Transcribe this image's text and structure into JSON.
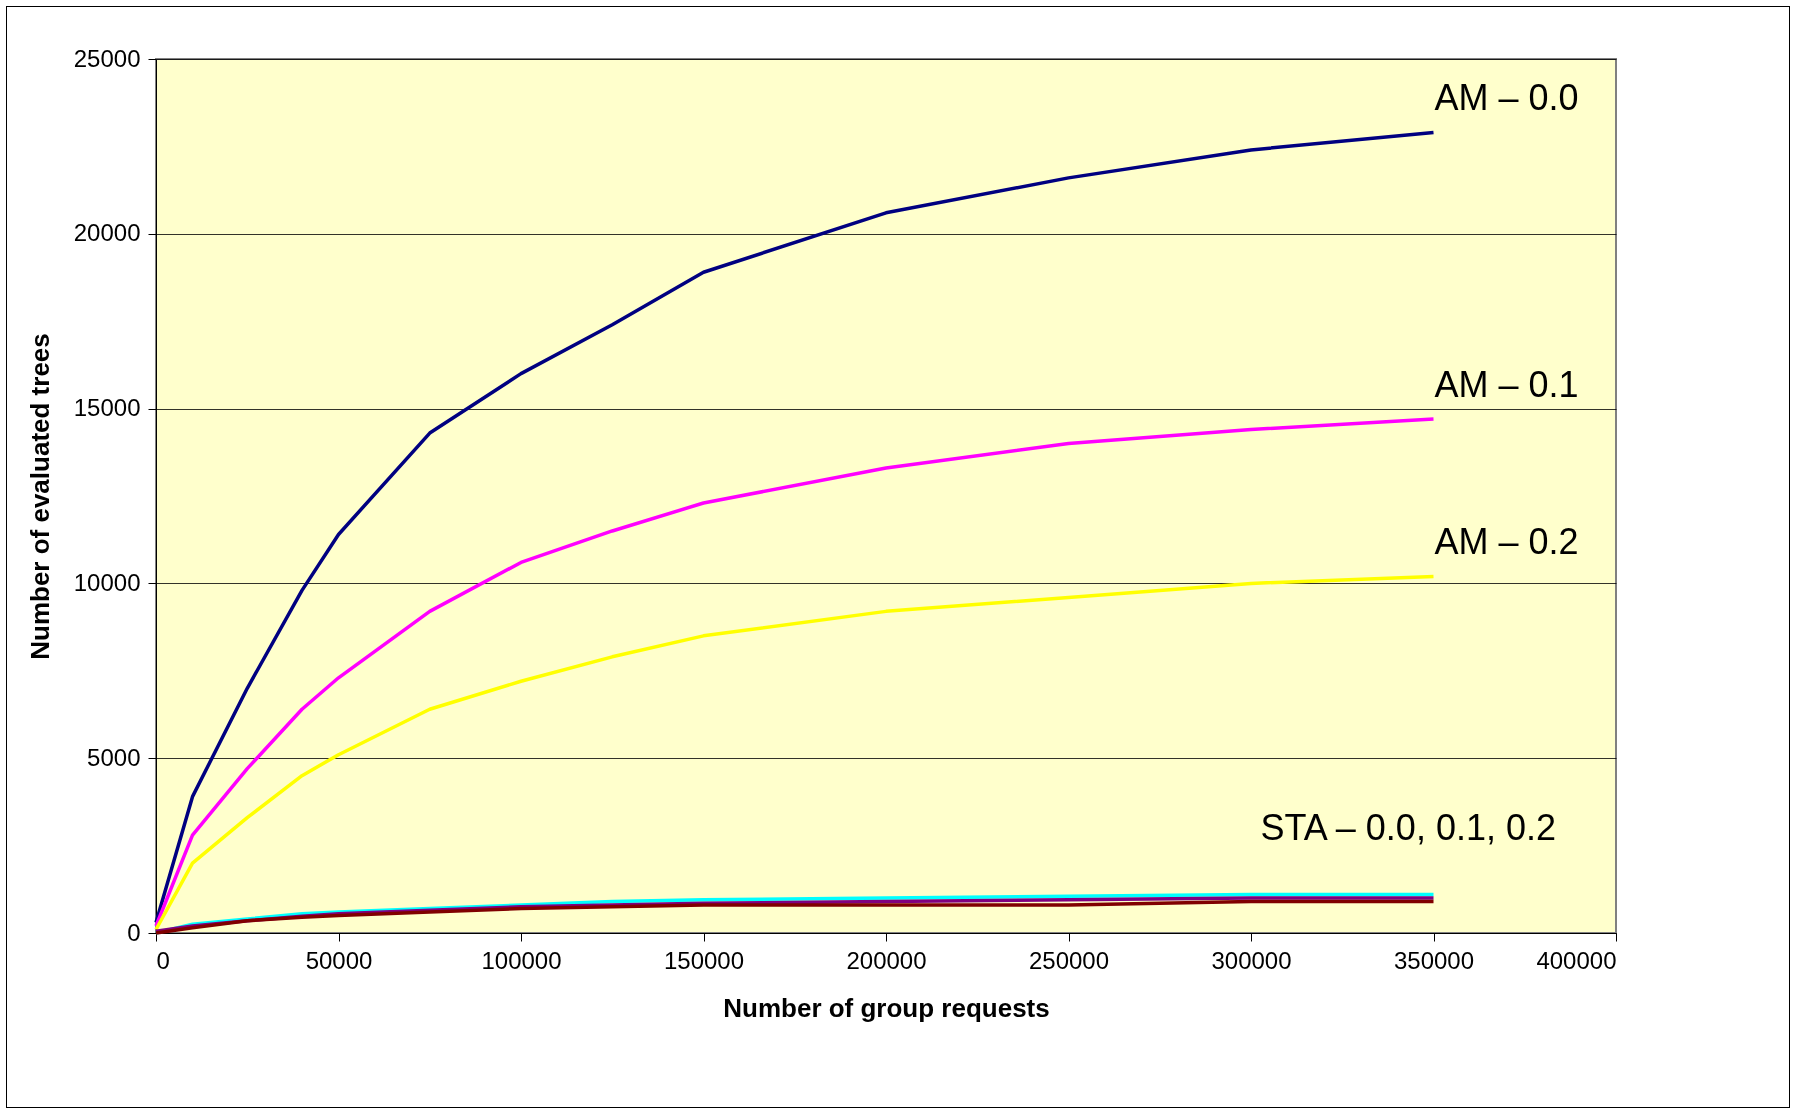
{
  "chart_data": {
    "type": "line",
    "xlabel": "Number of group requests",
    "ylabel": "Number of evaluated trees",
    "xlim": [
      0,
      400000
    ],
    "xticks": [
      0,
      50000,
      100000,
      150000,
      200000,
      250000,
      300000,
      350000,
      400000
    ],
    "ylim": [
      0,
      25000
    ],
    "yticks": [
      0,
      5000,
      10000,
      15000,
      20000,
      25000
    ],
    "grid": "y",
    "legend": false,
    "x": [
      0,
      10000,
      25000,
      40000,
      50000,
      75000,
      100000,
      125000,
      150000,
      200000,
      250000,
      300000,
      350000
    ],
    "series": [
      {
        "name": "AM – 0.0",
        "color": "#000080",
        "values": [
          300,
          3900,
          7000,
          9800,
          11400,
          14300,
          16000,
          17400,
          18900,
          20600,
          21600,
          22400,
          22900
        ]
      },
      {
        "name": "AM – 0.1",
        "color": "#ff00ff",
        "values": [
          200,
          2800,
          4700,
          6400,
          7300,
          9200,
          10600,
          11500,
          12300,
          13300,
          14000,
          14400,
          14700
        ]
      },
      {
        "name": "AM – 0.2",
        "color": "#ffff00",
        "values": [
          100,
          2000,
          3300,
          4500,
          5100,
          6400,
          7200,
          7900,
          8500,
          9200,
          9600,
          10000,
          10200
        ]
      },
      {
        "color": "#00ffff",
        "values": [
          0,
          250,
          400,
          550,
          600,
          700,
          800,
          900,
          950,
          1000,
          1050,
          1100,
          1100
        ]
      },
      {
        "color": "#800080",
        "values": [
          50,
          200,
          350,
          480,
          550,
          650,
          750,
          800,
          850,
          900,
          950,
          1000,
          1000
        ]
      },
      {
        "color": "#800000",
        "values": [
          0,
          150,
          350,
          450,
          500,
          600,
          700,
          750,
          800,
          800,
          800,
          900,
          900
        ]
      }
    ],
    "annotations": [
      "STA – 0.0, 0.1, 0.2"
    ]
  }
}
